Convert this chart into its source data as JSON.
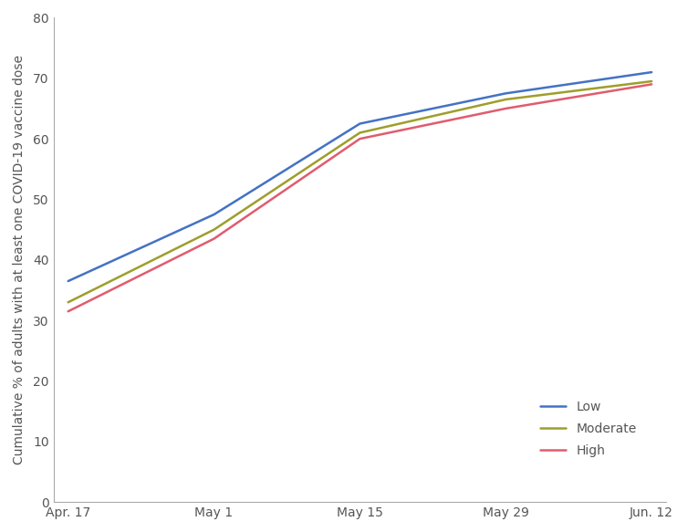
{
  "x_labels": [
    "Apr. 17",
    "May 1",
    "May 15",
    "May 29",
    "Jun. 12"
  ],
  "x_values": [
    0,
    1,
    2,
    3,
    4
  ],
  "series_order": [
    "Low",
    "Moderate",
    "High"
  ],
  "series": {
    "Low": {
      "values": [
        36.5,
        47.5,
        62.5,
        67.5,
        71.0
      ],
      "color": "#4472C4"
    },
    "Moderate": {
      "values": [
        33.0,
        45.0,
        61.0,
        66.5,
        69.5
      ],
      "color": "#9E9E2C"
    },
    "High": {
      "values": [
        31.5,
        43.5,
        60.0,
        65.0,
        69.0
      ],
      "color": "#E05C6E"
    }
  },
  "ylabel": "Cumulative % of adults with at least one COVID-19 vaccine dose",
  "ylim": [
    0,
    80
  ],
  "yticks": [
    0,
    10,
    20,
    30,
    40,
    50,
    60,
    70,
    80
  ],
  "background_color": "#ffffff",
  "line_width": 1.8,
  "spine_color": "#aaaaaa",
  "tick_label_color": "#555555",
  "tick_label_fontsize": 10,
  "ylabel_fontsize": 10,
  "legend_fontsize": 10
}
